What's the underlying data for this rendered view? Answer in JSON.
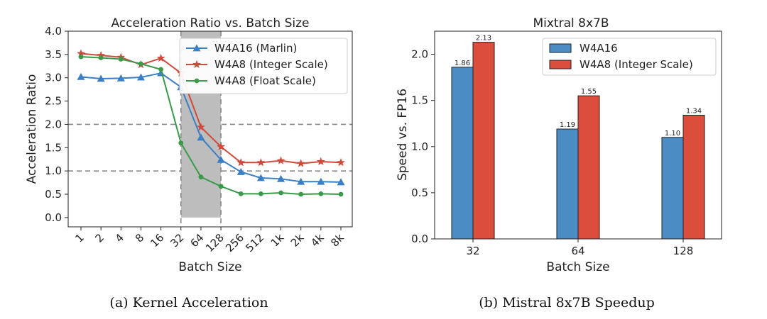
{
  "captions": {
    "left": "(a) Kernel Acceleration",
    "right": "(b) Mistral 8x7B Speedup"
  },
  "chart_data": [
    {
      "type": "line",
      "title": "Acceleration Ratio vs. Batch Size",
      "xlabel": "Batch Size",
      "ylabel": "Acceleration Ratio",
      "categories": [
        "1",
        "2",
        "4",
        "8",
        "16",
        "32",
        "64",
        "128",
        "256",
        "512",
        "1k",
        "2k",
        "4k",
        "8k"
      ],
      "ylim": [
        -0.2,
        4.0
      ],
      "yticks": [
        "0.0",
        "0.5",
        "1.0",
        "1.5",
        "2.0",
        "2.5",
        "3.0",
        "3.5",
        "4.0"
      ],
      "reference_lines": [
        1.0,
        2.0
      ],
      "shaded_region": {
        "from": "32",
        "to": "128"
      },
      "legend_position": "top-right",
      "series": [
        {
          "name": "W4A16 (Marlin)",
          "color": "#3b7fc4",
          "marker": "triangle",
          "values": [
            3.02,
            2.98,
            2.99,
            3.01,
            3.1,
            2.8,
            1.72,
            1.24,
            0.98,
            0.85,
            0.83,
            0.77,
            0.77,
            0.76
          ]
        },
        {
          "name": "W4A8 (Integer Scale)",
          "color": "#d04a3c",
          "marker": "star",
          "values": [
            3.52,
            3.48,
            3.44,
            3.28,
            3.42,
            3.1,
            1.94,
            1.52,
            1.18,
            1.18,
            1.22,
            1.16,
            1.2,
            1.18
          ]
        },
        {
          "name": "W4A8 (Float Scale)",
          "color": "#3a9a4a",
          "marker": "dot",
          "values": [
            3.45,
            3.43,
            3.4,
            3.3,
            3.18,
            1.6,
            0.87,
            0.67,
            0.51,
            0.51,
            0.53,
            0.5,
            0.51,
            0.5
          ]
        }
      ]
    },
    {
      "type": "bar",
      "title": "Mixtral 8x7B",
      "xlabel": "Batch Size",
      "ylabel": "Speed vs. FP16",
      "categories": [
        "32",
        "64",
        "128"
      ],
      "ylim": [
        0.0,
        2.25
      ],
      "yticks": [
        "0.0",
        "0.5",
        "1.0",
        "1.5",
        "2.0"
      ],
      "legend_position": "top-right",
      "series": [
        {
          "name": "W4A16",
          "color": "#4c8cc4",
          "values": [
            1.86,
            1.19,
            1.1
          ],
          "labels": [
            "1.86",
            "1.19",
            "1.10"
          ]
        },
        {
          "name": "W4A8 (Integer Scale)",
          "color": "#dc4e3c",
          "values": [
            2.13,
            1.55,
            1.34
          ],
          "labels": [
            "2.13",
            "1.55",
            "1.34"
          ]
        }
      ]
    }
  ]
}
